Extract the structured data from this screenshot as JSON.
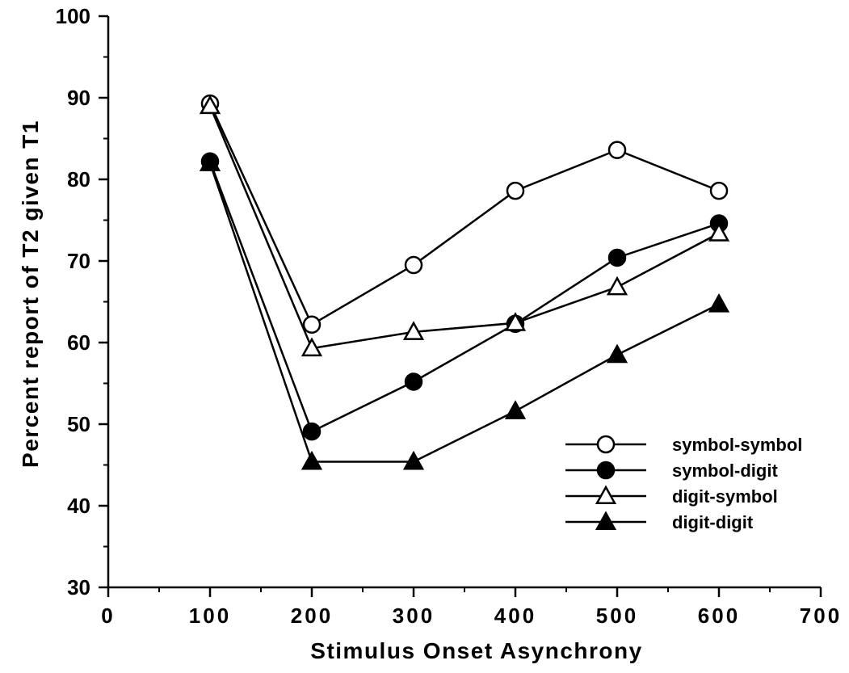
{
  "chart_data": {
    "type": "line",
    "title": "",
    "xlabel": "Stimulus Onset Asynchrony",
    "ylabel": "Percent report of T2 given T1",
    "xlim": [
      0,
      700
    ],
    "ylim": [
      30,
      100
    ],
    "xticks": [
      "0",
      "100",
      "200",
      "300",
      "400",
      "500",
      "600",
      "700"
    ],
    "yticks": [
      "30",
      "40",
      "50",
      "60",
      "70",
      "80",
      "90",
      "100"
    ],
    "x": [
      100,
      200,
      300,
      400,
      500,
      600
    ],
    "legend_position": "lower-right",
    "grid": false,
    "series": [
      {
        "name": "symbol-symbol",
        "marker": "circle-open",
        "values": [
          89.3,
          62.2,
          69.5,
          78.6,
          83.6,
          78.6
        ]
      },
      {
        "name": "symbol-digit",
        "marker": "circle-filled",
        "values": [
          82.2,
          49.1,
          55.2,
          62.3,
          70.4,
          74.6
        ]
      },
      {
        "name": "digit-symbol",
        "marker": "triangle-open",
        "values": [
          89.0,
          59.3,
          61.3,
          62.4,
          66.8,
          73.4
        ]
      },
      {
        "name": "digit-digit",
        "marker": "triangle-filled",
        "values": [
          82.0,
          45.4,
          45.4,
          51.6,
          58.5,
          64.7
        ]
      }
    ]
  }
}
